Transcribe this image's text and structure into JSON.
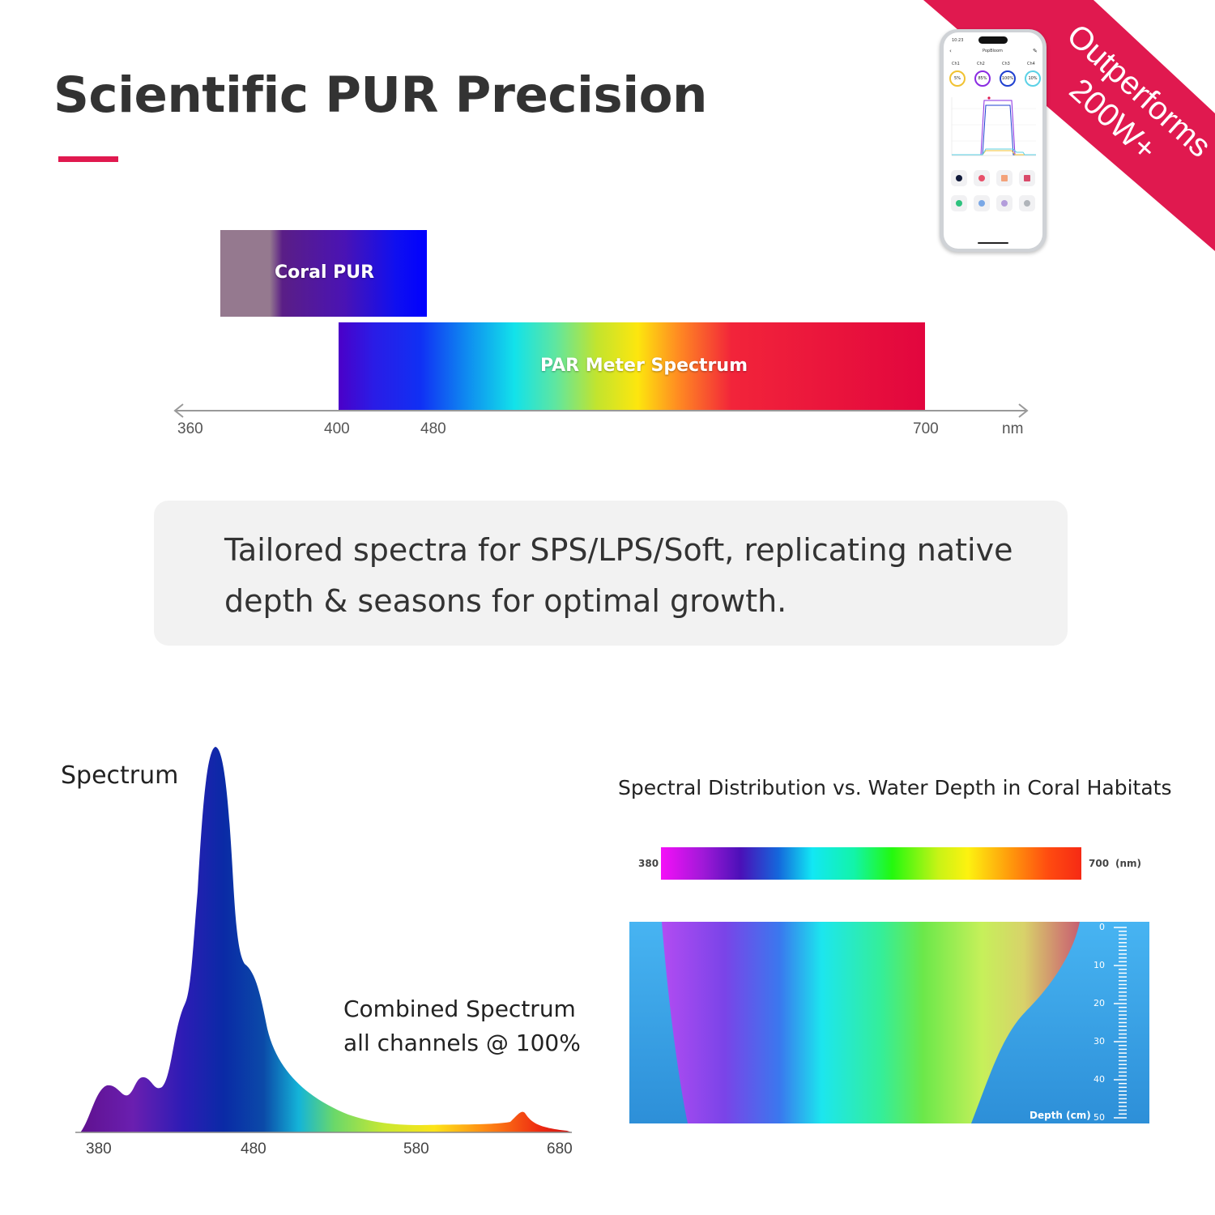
{
  "header": {
    "title": "Scientific PUR Precision"
  },
  "ribbon": {
    "line1": "Outperforms",
    "line2": "200W+",
    "color": "#e0194f"
  },
  "phone": {
    "status_time": "10:23",
    "app_name": "PopBloom",
    "channels": [
      {
        "name": "Ch1",
        "value": "5%",
        "ring_color": "#f1c232"
      },
      {
        "name": "Ch2",
        "value": "85%",
        "ring_color": "#8a2be2"
      },
      {
        "name": "Ch3",
        "value": "100%",
        "ring_color": "#1e3fd0"
      },
      {
        "name": "Ch4",
        "value": "10%",
        "ring_color": "#5bd1e6"
      }
    ]
  },
  "pur_par": {
    "coral_label": "Coral PUR",
    "par_label": "PAR Meter Spectrum",
    "axis_ticks": [
      "360",
      "400",
      "480",
      "700"
    ],
    "axis_unit": "nm"
  },
  "info": {
    "text": "Tailored spectra for SPS/LPS/Soft, replicating native depth & seasons for optimal growth."
  },
  "spectrum": {
    "title": "Spectrum",
    "combined_line1": "Combined Spectrum",
    "combined_line2": "all channels @ 100%",
    "ticks": [
      "380",
      "480",
      "580",
      "680"
    ]
  },
  "depth_chart": {
    "title": "Spectral Distribution vs. Water Depth in Coral Habitats",
    "wave_min": "380",
    "wave_max": "700",
    "wave_unit": "(nm)",
    "depth_ticks": [
      "0",
      "10",
      "20",
      "30",
      "40",
      "50"
    ],
    "depth_label": "Depth (cm)"
  },
  "colors": {
    "accent": "#e0194f",
    "card_bg": "#f2f2f2",
    "water": "#3aa9f0"
  }
}
